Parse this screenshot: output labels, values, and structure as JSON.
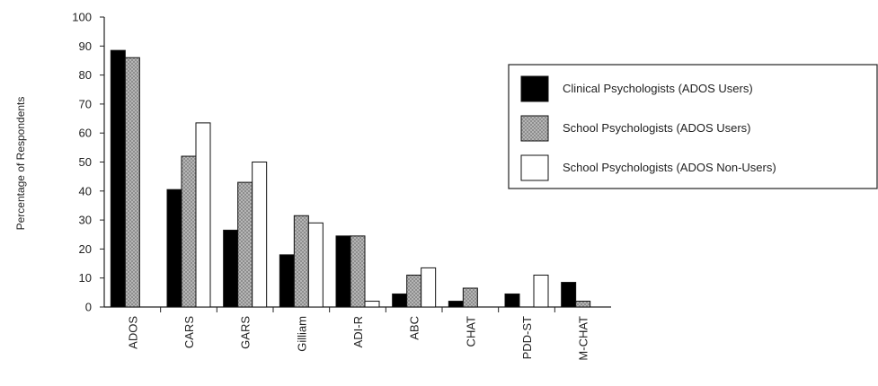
{
  "chart_data": {
    "type": "bar",
    "title": "",
    "xlabel": "",
    "ylabel": "Percentage of Respondents",
    "ylim": [
      0,
      100
    ],
    "yticks": [
      0,
      10,
      20,
      30,
      40,
      50,
      60,
      70,
      80,
      90,
      100
    ],
    "grid": false,
    "legend_position": "right",
    "categories": [
      "ADOS",
      "CARS",
      "GARS",
      "Gilliam",
      "ADI-R",
      "ABC",
      "CHAT",
      "PDD-ST",
      "M-CHAT"
    ],
    "series": [
      {
        "name": "Clinical Psychologists (ADOS Users)",
        "color": "#000000",
        "pattern": "solid",
        "values": [
          88.5,
          40.5,
          26.5,
          18,
          24.5,
          4.5,
          2,
          4.5,
          8.5
        ]
      },
      {
        "name": "School Psychologists (ADOS Users)",
        "color": "#a6a6a6",
        "pattern": "gray",
        "values": [
          86,
          52,
          43,
          31.5,
          24.5,
          11,
          6.5,
          0,
          2
        ]
      },
      {
        "name": "School Psychologists (ADOS Non-Users)",
        "color": "#ffffff",
        "pattern": "outline",
        "values": [
          0,
          63.5,
          50,
          29,
          2,
          13.5,
          0,
          11,
          0
        ]
      }
    ]
  }
}
